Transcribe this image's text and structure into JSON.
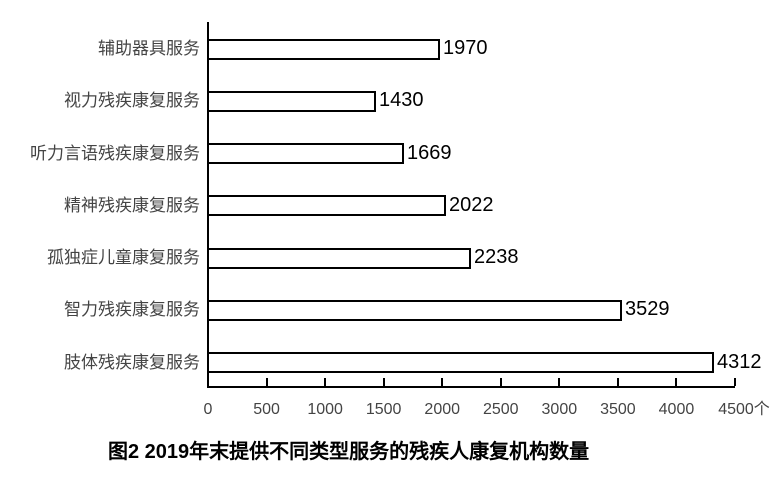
{
  "chart_data": {
    "type": "bar",
    "orientation": "horizontal",
    "title": "图2 2019年末提供不同类型服务的残疾人康复机构数量",
    "categories": [
      "辅助器具服务",
      "视力残疾康复服务",
      "听力言语残疾康复服务",
      "精神残疾康复服务",
      "孤独症儿童康复服务",
      "智力残疾康复服务",
      "肢体残疾康复服务"
    ],
    "values": [
      1970,
      1430,
      1669,
      2022,
      2238,
      3529,
      4312
    ],
    "value_labels": [
      "1970",
      "1430",
      "1669",
      "2022",
      "2238",
      "3529",
      "4312"
    ],
    "xlabel": "",
    "ylabel": "",
    "unit": "个",
    "xlim": [
      0,
      4500
    ],
    "x_ticks": [
      0,
      500,
      1000,
      1500,
      2000,
      2500,
      3000,
      3500,
      4000,
      4500
    ],
    "x_tick_labels": [
      "0",
      "500",
      "1000",
      "1500",
      "2000",
      "2500",
      "3000",
      "3500",
      "4000",
      "4500个"
    ],
    "grid": false,
    "legend": false,
    "styles": {
      "bar_fill": "#ffffff",
      "bar_border": "#000000",
      "axis_color": "#000000",
      "category_text_color": "#444444",
      "tick_text_color": "#444444",
      "value_text_color": "#000000",
      "title_color": "#000000",
      "background": "#ffffff"
    }
  }
}
